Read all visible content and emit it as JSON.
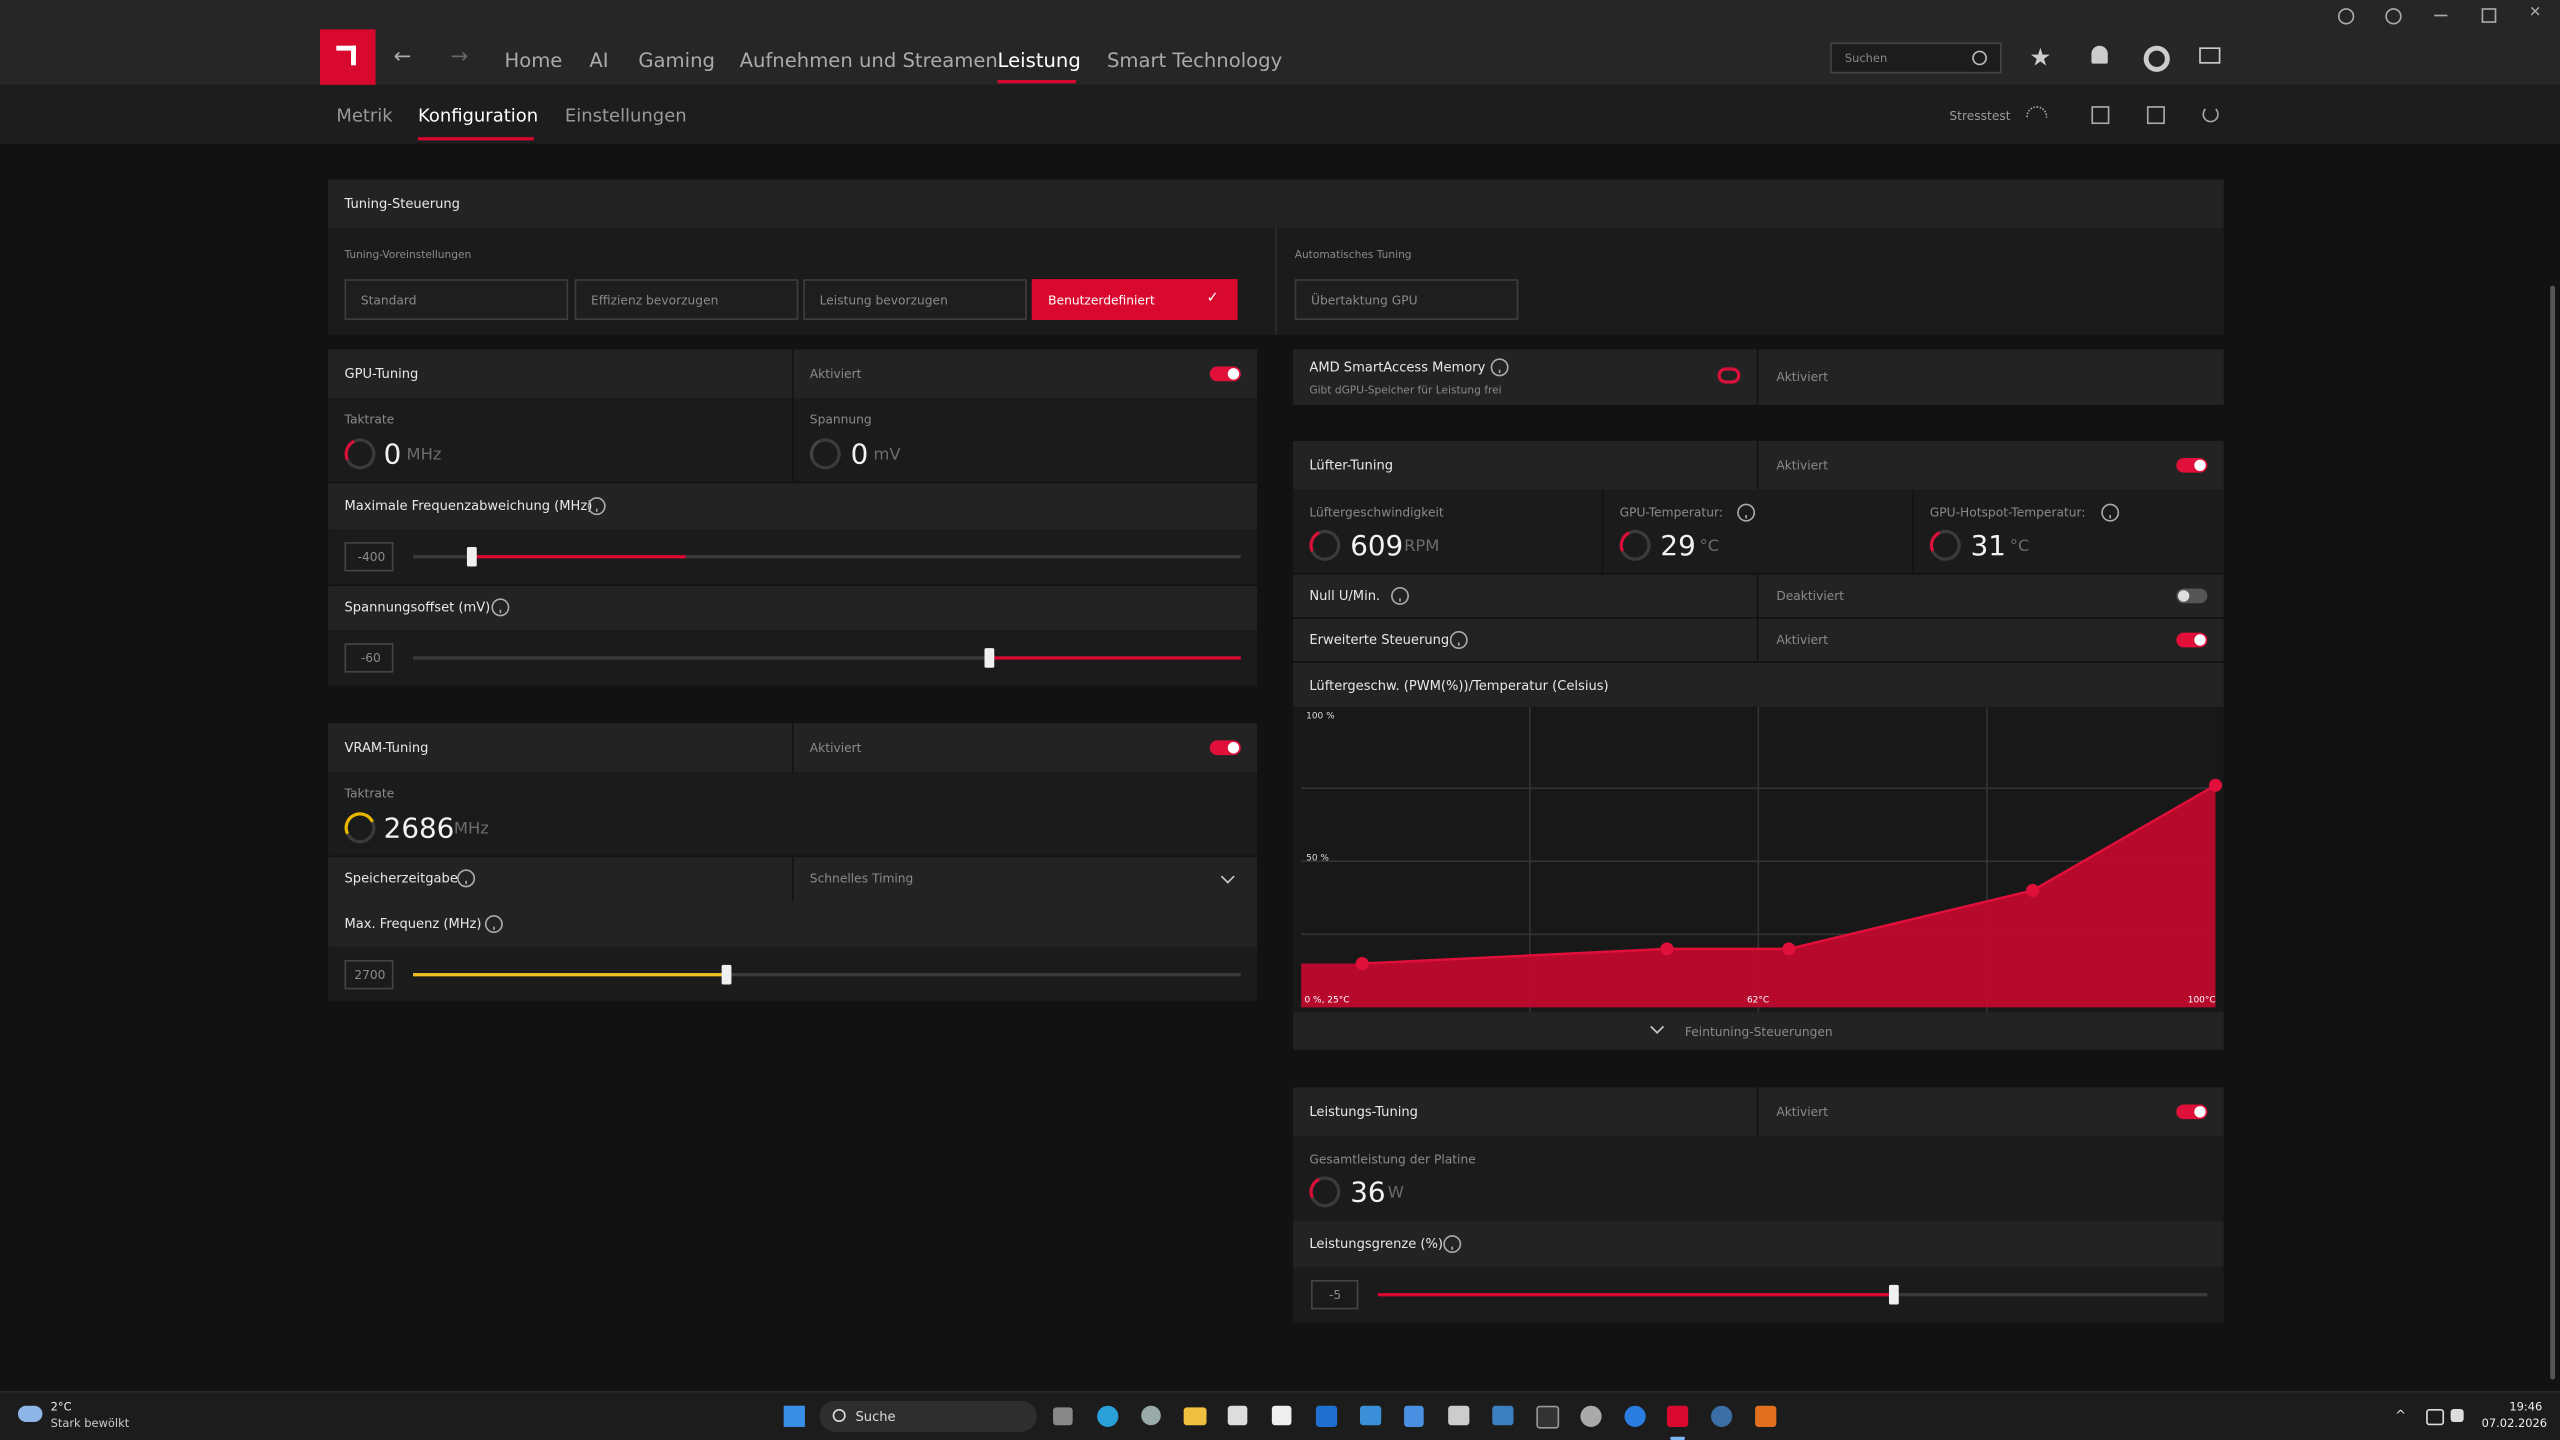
{
  "nav": {
    "items": [
      "Home",
      "AI",
      "Gaming",
      "Aufnehmen und Streamen",
      "Leistung",
      "Smart Technology"
    ],
    "search_placeholder": "Suchen"
  },
  "subnav": {
    "items": [
      "Metrik",
      "Konfiguration",
      "Einstellungen"
    ],
    "stresstest": "Stresstest"
  },
  "tuning_control": {
    "title": "Tuning-Steuerung",
    "presets_label": "Tuning-Voreinstellungen",
    "presets": [
      "Standard",
      "Effizienz bevorzugen",
      "Leistung bevorzugen",
      "Benutzerdefiniert"
    ],
    "auto_label": "Automatisches Tuning",
    "auto_button": "Übertaktung GPU"
  },
  "gpu_tuning": {
    "title": "GPU-Tuning",
    "status": "Aktiviert",
    "clock_label": "Taktrate",
    "clock_value": 0,
    "clock_unit": "MHz",
    "voltage_label": "Spannung",
    "voltage_value": 0,
    "voltage_unit": "mV",
    "freq_offset_label": "Maximale Frequenzabweichung (MHz)",
    "freq_offset_value": -400,
    "voltage_offset_label": "Spannungsoffset (mV)",
    "voltage_offset_value": -60
  },
  "vram_tuning": {
    "title": "VRAM-Tuning",
    "status": "Aktiviert",
    "clock_label": "Taktrate",
    "clock_value": 2686,
    "clock_unit": "MHz",
    "timing_label": "Speicherzeitgabe",
    "timing_value": "Schnelles Timing",
    "max_freq_label": "Max. Frequenz (MHz)",
    "max_freq_value": 2700
  },
  "smart_access_memory": {
    "title": "AMD SmartAccess Memory",
    "subtitle": "Gibt dGPU-Speicher für Leistung frei",
    "status": "Aktiviert"
  },
  "fan_tuning": {
    "title": "Lüfter-Tuning",
    "status": "Aktiviert",
    "metrics": [
      {
        "label": "Lüftergeschwindigkeit",
        "value": 609,
        "unit": "RPM"
      },
      {
        "label": "GPU-Temperatur:",
        "value": 29,
        "unit": "°C"
      },
      {
        "label": "GPU-Hotspot-Temperatur:",
        "value": 31,
        "unit": "°C"
      }
    ],
    "zero_rpm_label": "Null U/Min.",
    "zero_rpm_status": "Deaktiviert",
    "advanced_label": "Erweiterte Steuerung",
    "advanced_status": "Aktiviert",
    "curve": {
      "title": "Lüftergeschw. (PWM(%))/Temperatur (Celsius)",
      "xlim": [
        25,
        100
      ],
      "ylim": [
        0,
        100
      ],
      "label_top": "100 %",
      "label_mid": "50 %",
      "label_origin": "0 %, 25°C",
      "label_x_mid": "62°C",
      "label_x_end": "100°C",
      "points": [
        {
          "temp": 30,
          "fan": 15
        },
        {
          "temp": 55,
          "fan": 20
        },
        {
          "temp": 65,
          "fan": 20
        },
        {
          "temp": 85,
          "fan": 40
        },
        {
          "temp": 100,
          "fan": 76
        }
      ]
    },
    "fine_tuning": "Feintuning-Steuerungen"
  },
  "power_tuning": {
    "title": "Leistungs-Tuning",
    "status": "Aktiviert",
    "board_power_label": "Gesamtleistung der Platine",
    "board_power_value": 36,
    "board_power_unit": "W",
    "limit_label": "Leistungsgrenze (%)",
    "limit_value": -5
  },
  "taskbar": {
    "temperature": "2°C",
    "weather": "Stark bewölkt",
    "search": "Suche",
    "time": "19:46",
    "date": "07.02.2026"
  }
}
